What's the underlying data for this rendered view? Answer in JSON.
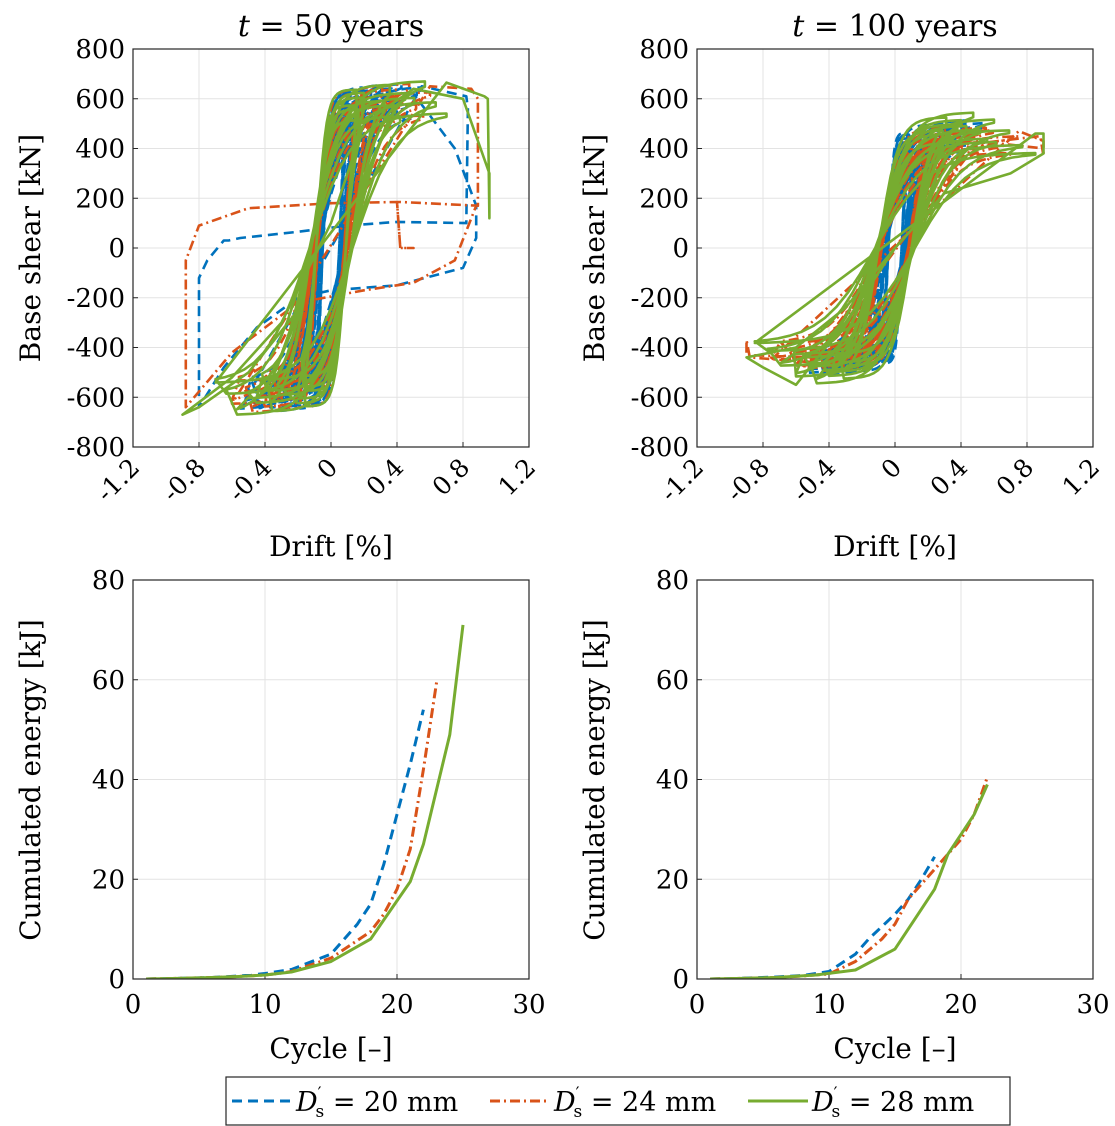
{
  "figure": {
    "legend": {
      "placement": "bottom-center",
      "entries": [
        {
          "label_main": "D",
          "label_sup": "′",
          "label_sub": "s",
          "label_rest": " = 20 mm",
          "color": "#0072BD",
          "dash": "dashed"
        },
        {
          "label_main": "D",
          "label_sup": "′",
          "label_sub": "s",
          "label_rest": " = 24 mm",
          "color": "#D95319",
          "dash": "dashdot"
        },
        {
          "label_main": "D",
          "label_sup": "′",
          "label_sub": "s",
          "label_rest": " = 28 mm",
          "color": "#77AC30",
          "dash": "solid"
        }
      ]
    }
  },
  "chart_data": [
    {
      "id": "hyst50",
      "type": "line",
      "title_var": "t",
      "title_rest": " = 50 years",
      "xlabel": "Drift [%]",
      "ylabel": "Base shear [kN]",
      "xlim": [
        -1.2,
        1.2
      ],
      "ylim": [
        -800,
        800
      ],
      "xticks": [
        -1.2,
        -0.8,
        -0.4,
        0,
        0.4,
        0.8,
        1.2
      ],
      "xtick_labels": [
        "-1.2",
        "-0.8",
        "-0.4",
        "0",
        "0.4",
        "0.8",
        "1.2"
      ],
      "yticks": [
        -800,
        -600,
        -400,
        -200,
        0,
        200,
        400,
        600,
        800
      ],
      "ytick_labels": [
        "-800",
        "-600",
        "-400",
        "-200",
        "0",
        "200",
        "400",
        "600",
        "800"
      ],
      "grid": true,
      "series": [
        {
          "name": "D′s = 20 mm",
          "color": "#0072BD",
          "dash": "dashed",
          "loops": [
            {
              "a": 0.12,
              "p": 620,
              "w": 0.05,
              "n": 14
            },
            {
              "a": 0.25,
              "p": 640,
              "w": 0.06,
              "n": 10
            },
            {
              "a": 0.4,
              "p": 650,
              "w": 0.07,
              "n": 8
            },
            {
              "a": 0.55,
              "p": 655,
              "w": 0.08,
              "n": 6
            }
          ],
          "extra": [
            [
              0.55,
              650
            ],
            [
              0.82,
              610
            ],
            [
              0.83,
              560
            ],
            [
              0.82,
              100
            ],
            [
              0.4,
              105
            ],
            [
              0.1,
              90
            ],
            [
              -0.2,
              65
            ],
            [
              -0.55,
              40
            ],
            [
              -0.62,
              30
            ],
            [
              -0.65,
              30
            ],
            [
              -0.75,
              -50
            ],
            [
              -0.8,
              -120
            ],
            [
              -0.8,
              -440
            ],
            [
              -0.8,
              -640
            ],
            [
              -0.65,
              -480
            ],
            [
              -0.45,
              -320
            ],
            [
              -0.2,
              -200
            ],
            [
              0.0,
              -170
            ],
            [
              0.4,
              -150
            ],
            [
              0.8,
              -80
            ],
            [
              0.88,
              40
            ],
            [
              0.88,
              170
            ],
            [
              0.75,
              400
            ],
            [
              0.5,
              620
            ]
          ]
        },
        {
          "name": "D′s = 24 mm",
          "color": "#D95319",
          "dash": "dashdot",
          "loops": [
            {
              "a": 0.2,
              "p": 630,
              "w": 0.08,
              "n": 8
            },
            {
              "a": 0.4,
              "p": 645,
              "w": 0.1,
              "n": 6
            },
            {
              "a": 0.6,
              "p": 655,
              "w": 0.11,
              "n": 5
            }
          ],
          "extra": [
            [
              0.6,
              650
            ],
            [
              0.85,
              640
            ],
            [
              0.89,
              600
            ],
            [
              0.89,
              170
            ],
            [
              0.42,
              185
            ],
            [
              0.4,
              185
            ],
            [
              0.42,
              0
            ],
            [
              0.5,
              0
            ],
            [
              0.42,
              0
            ],
            [
              0.4,
              185
            ],
            [
              0.0,
              180
            ],
            [
              -0.5,
              160
            ],
            [
              -0.8,
              90
            ],
            [
              -0.88,
              -50
            ],
            [
              -0.88,
              -540
            ],
            [
              -0.88,
              -640
            ],
            [
              -0.6,
              -420
            ],
            [
              -0.2,
              -220
            ],
            [
              0.2,
              -170
            ],
            [
              0.5,
              -140
            ],
            [
              0.75,
              -50
            ],
            [
              0.88,
              170
            ]
          ]
        },
        {
          "name": "D′s = 28 mm",
          "color": "#77AC30",
          "dash": "solid",
          "loops": [
            {
              "a": 0.2,
              "p": 630,
              "w": 0.09,
              "n": 6
            },
            {
              "a": 0.45,
              "p": 650,
              "w": 0.12,
              "n": 5
            },
            {
              "a": 0.7,
              "p": 665,
              "w": 0.13,
              "n": 4
            }
          ],
          "extra": [
            [
              0.7,
              665
            ],
            [
              0.93,
              610
            ],
            [
              0.95,
              600
            ],
            [
              0.96,
              120
            ],
            [
              0.96,
              300
            ],
            [
              0.8,
              600
            ],
            [
              0.5,
              640
            ],
            [
              0.2,
              500
            ],
            [
              0.0,
              100
            ],
            [
              -0.3,
              -300
            ],
            [
              -0.6,
              -520
            ],
            [
              -0.9,
              -670
            ],
            [
              -0.8,
              -640
            ],
            [
              -0.5,
              -500
            ],
            [
              -0.2,
              -250
            ]
          ]
        }
      ]
    },
    {
      "id": "hyst100",
      "type": "line",
      "title_var": "t",
      "title_rest": " = 100 years",
      "xlabel": "Drift [%]",
      "ylabel": "Base shear [kN]",
      "xlim": [
        -1.2,
        1.2
      ],
      "ylim": [
        -800,
        800
      ],
      "xticks": [
        -1.2,
        -0.8,
        -0.4,
        0,
        0.4,
        0.8,
        1.2
      ],
      "xtick_labels": [
        "-1.2",
        "-0.8",
        "-0.4",
        "0",
        "0.4",
        "0.8",
        "1.2"
      ],
      "yticks": [
        -800,
        -600,
        -400,
        -200,
        0,
        200,
        400,
        600,
        800
      ],
      "ytick_labels": [
        "-800",
        "-600",
        "-400",
        "-200",
        "0",
        "200",
        "400",
        "600",
        "800"
      ],
      "grid": true,
      "series": [
        {
          "name": "D′s = 20 mm",
          "color": "#0072BD",
          "dash": "dashed",
          "loops": [
            {
              "a": 0.1,
              "p": 460,
              "w": 0.04,
              "n": 12
            },
            {
              "a": 0.25,
              "p": 490,
              "w": 0.05,
              "n": 10
            },
            {
              "a": 0.4,
              "p": 500,
              "w": 0.06,
              "n": 8
            },
            {
              "a": 0.55,
              "p": 510,
              "w": 0.07,
              "n": 6
            }
          ],
          "extra": []
        },
        {
          "name": "D′s = 24 mm",
          "color": "#D95319",
          "dash": "dashdot",
          "loops": [
            {
              "a": 0.35,
              "p": 480,
              "w": 0.08,
              "n": 8
            },
            {
              "a": 0.55,
              "p": 490,
              "w": 0.09,
              "n": 6
            },
            {
              "a": 0.75,
              "p": 470,
              "w": 0.1,
              "n": 5
            }
          ],
          "extra": [
            [
              0.75,
              470
            ],
            [
              0.9,
              430
            ],
            [
              0.9,
              370
            ],
            [
              0.88,
              450
            ],
            [
              0.5,
              420
            ],
            [
              0.0,
              0
            ],
            [
              -0.5,
              -440
            ],
            [
              -0.9,
              -430
            ],
            [
              -0.9,
              -370
            ],
            [
              -0.88,
              -440
            ],
            [
              -0.5,
              -460
            ],
            [
              0.0,
              -10
            ],
            [
              0.5,
              430
            ],
            [
              0.9,
              400
            ]
          ]
        },
        {
          "name": "D′s = 28 mm",
          "color": "#77AC30",
          "dash": "solid",
          "loops": [
            {
              "a": 0.4,
              "p": 520,
              "w": 0.1,
              "n": 6
            },
            {
              "a": 0.6,
              "p": 540,
              "w": 0.11,
              "n": 5
            },
            {
              "a": 0.85,
              "p": 470,
              "w": 0.12,
              "n": 4
            }
          ],
          "extra": [
            [
              0.85,
              460
            ],
            [
              0.9,
              460
            ],
            [
              0.9,
              380
            ],
            [
              0.7,
              300
            ],
            [
              0.3,
              220
            ],
            [
              0.0,
              0
            ],
            [
              -0.3,
              -240
            ],
            [
              -0.6,
              -400
            ],
            [
              -0.9,
              -440
            ],
            [
              -0.8,
              -480
            ],
            [
              -0.6,
              -550
            ],
            [
              -0.3,
              -300
            ],
            [
              0.0,
              0
            ]
          ]
        }
      ]
    },
    {
      "id": "energy50",
      "type": "line",
      "xlabel": "Cycle [–]",
      "ylabel": "Cumulated energy [kJ]",
      "xlim": [
        0,
        30
      ],
      "ylim": [
        0,
        80
      ],
      "xticks": [
        0,
        10,
        20,
        30
      ],
      "xtick_labels": [
        "0",
        "10",
        "20",
        "30"
      ],
      "yticks": [
        0,
        20,
        40,
        60,
        80
      ],
      "ytick_labels": [
        "0",
        "20",
        "40",
        "60",
        "80"
      ],
      "grid": true,
      "series": [
        {
          "name": "D′s = 20 mm",
          "color": "#0072BD",
          "dash": "dashed",
          "points": [
            [
              1,
              0
            ],
            [
              3,
              0.1
            ],
            [
              6,
              0.3
            ],
            [
              8,
              0.6
            ],
            [
              9,
              0.8
            ],
            [
              10,
              1.1
            ],
            [
              11,
              1.5
            ],
            [
              12,
              1.9
            ],
            [
              15,
              5
            ],
            [
              17,
              11
            ],
            [
              18,
              15
            ],
            [
              19,
              23
            ],
            [
              20,
              33
            ],
            [
              21,
              43
            ],
            [
              22,
              54
            ]
          ]
        },
        {
          "name": "D′s = 24 mm",
          "color": "#D95319",
          "dash": "dashdot",
          "points": [
            [
              1,
              0
            ],
            [
              3,
              0.1
            ],
            [
              6,
              0.3
            ],
            [
              8,
              0.5
            ],
            [
              10,
              0.8
            ],
            [
              11,
              1.1
            ],
            [
              12,
              1.5
            ],
            [
              15,
              4.2
            ],
            [
              18,
              9.5
            ],
            [
              19,
              13
            ],
            [
              20,
              18
            ],
            [
              21,
              26
            ],
            [
              22,
              42
            ],
            [
              23,
              59.5
            ]
          ]
        },
        {
          "name": "D′s = 28 mm",
          "color": "#77AC30",
          "dash": "solid",
          "points": [
            [
              1,
              0
            ],
            [
              3,
              0.1
            ],
            [
              6,
              0.3
            ],
            [
              8,
              0.5
            ],
            [
              10,
              0.8
            ],
            [
              12,
              1.4
            ],
            [
              15,
              3.5
            ],
            [
              18,
              8
            ],
            [
              21,
              19.5
            ],
            [
              22,
              27
            ],
            [
              24,
              49
            ],
            [
              25,
              71
            ]
          ]
        }
      ]
    },
    {
      "id": "energy100",
      "type": "line",
      "xlabel": "Cycle [–]",
      "ylabel": "Cumulated energy [kJ]",
      "xlim": [
        0,
        30
      ],
      "ylim": [
        0,
        80
      ],
      "xticks": [
        0,
        10,
        20,
        30
      ],
      "xtick_labels": [
        "0",
        "10",
        "20",
        "30"
      ],
      "yticks": [
        0,
        20,
        40,
        60,
        80
      ],
      "ytick_labels": [
        "0",
        "20",
        "40",
        "60",
        "80"
      ],
      "grid": true,
      "series": [
        {
          "name": "D′s = 20 mm",
          "color": "#0072BD",
          "dash": "dashed",
          "points": [
            [
              1,
              0
            ],
            [
              3,
              0.1
            ],
            [
              6,
              0.4
            ],
            [
              8,
              0.7
            ],
            [
              10,
              1.5
            ],
            [
              12,
              5
            ],
            [
              13,
              8
            ],
            [
              15,
              13
            ],
            [
              16,
              16
            ],
            [
              17,
              20
            ],
            [
              18,
              24.5
            ]
          ]
        },
        {
          "name": "D′s = 24 mm",
          "color": "#D95319",
          "dash": "dashdot",
          "points": [
            [
              1,
              0
            ],
            [
              3,
              0.1
            ],
            [
              6,
              0.3
            ],
            [
              8,
              0.6
            ],
            [
              10,
              1
            ],
            [
              12,
              3.5
            ],
            [
              14,
              8
            ],
            [
              15,
              11
            ],
            [
              16,
              16
            ],
            [
              17,
              19
            ],
            [
              18,
              22
            ],
            [
              19,
              25
            ],
            [
              20,
              28
            ],
            [
              21,
              33
            ],
            [
              22,
              40.5
            ]
          ]
        },
        {
          "name": "D′s = 28 mm",
          "color": "#77AC30",
          "dash": "solid",
          "points": [
            [
              1,
              0
            ],
            [
              3,
              0.1
            ],
            [
              6,
              0.3
            ],
            [
              9,
              0.8
            ],
            [
              12,
              1.8
            ],
            [
              15,
              6
            ],
            [
              17,
              14
            ],
            [
              18,
              18
            ],
            [
              19,
              25
            ],
            [
              20,
              29
            ],
            [
              21,
              33
            ],
            [
              22,
              39
            ]
          ]
        }
      ]
    }
  ]
}
